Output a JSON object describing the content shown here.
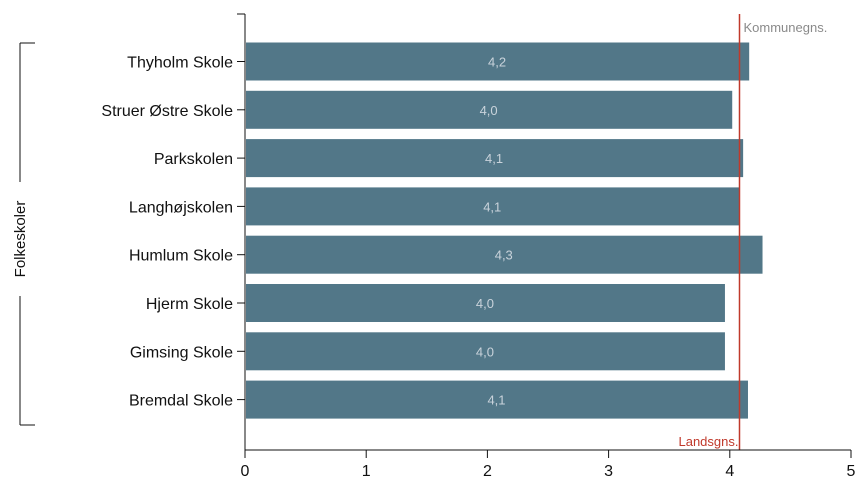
{
  "chart_data": {
    "type": "bar",
    "orientation": "horizontal",
    "group_label": "Folkeskoler",
    "categories": [
      "Thyholm Skole",
      "Struer Østre Skole",
      "Parkskolen",
      "Langhøjskolen",
      "Humlum Skole",
      "Hjerm Skole",
      "Gimsing Skole",
      "Bremdal Skole"
    ],
    "values": [
      4.16,
      4.02,
      4.11,
      4.08,
      4.27,
      3.96,
      3.96,
      4.15
    ],
    "value_labels": [
      "4,2",
      "4,0",
      "4,1",
      "4,1",
      "4,3",
      "4,0",
      "4,0",
      "4,1"
    ],
    "xlim": [
      0,
      5
    ],
    "xticks": [
      "0",
      "1",
      "2",
      "3",
      "4",
      "5"
    ],
    "reference_lines": {
      "kommune": {
        "label": "Kommunegns.",
        "value": 4.08,
        "color": "#c0392b"
      },
      "lands": {
        "label": "Landsgns.",
        "value": 4.08,
        "color": "#c0392b"
      }
    },
    "bar_color": "#527788",
    "grid": false
  }
}
